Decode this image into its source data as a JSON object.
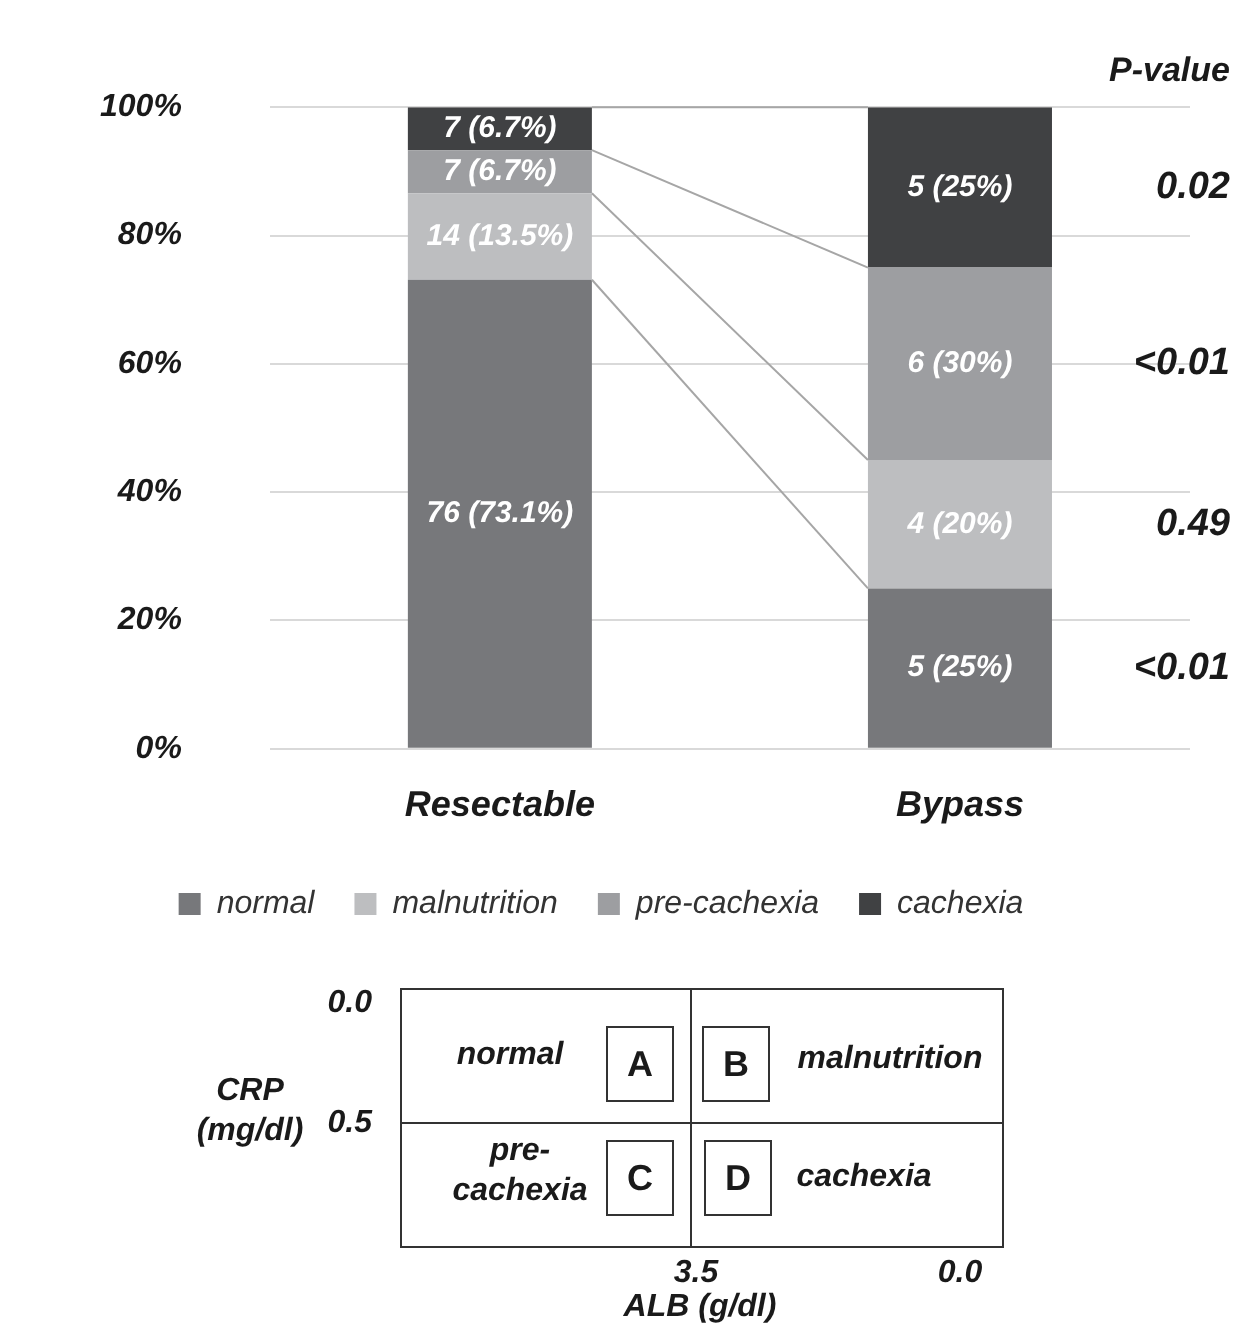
{
  "chart_data": {
    "type": "bar",
    "stacked": true,
    "categories": [
      "Resectable",
      "Bypass"
    ],
    "series": [
      {
        "name": "normal",
        "color": "#77787b",
        "values": [
          73.1,
          25
        ],
        "value_labels": [
          "76 (73.1%)",
          "5 (25%)"
        ]
      },
      {
        "name": "malnutrition",
        "color": "#bdbec0",
        "values": [
          13.5,
          20
        ],
        "value_labels": [
          "14 (13.5%)",
          "4 (20%)"
        ]
      },
      {
        "name": "pre-cachexia",
        "color": "#9d9ea1",
        "values": [
          6.7,
          30
        ],
        "value_labels": [
          "7 (6.7%)",
          "6 (30%)"
        ]
      },
      {
        "name": "cachexia",
        "color": "#404143",
        "values": [
          6.7,
          25
        ],
        "value_labels": [
          "7 (6.7%)",
          "5 (25%)"
        ]
      }
    ],
    "ylim": [
      0,
      100
    ],
    "yticks": [
      {
        "value": 0,
        "label": "0%"
      },
      {
        "value": 20,
        "label": "20%"
      },
      {
        "value": 40,
        "label": "40%"
      },
      {
        "value": 60,
        "label": "60%"
      },
      {
        "value": 80,
        "label": "80%"
      },
      {
        "value": 100,
        "label": "100%"
      }
    ],
    "grid": "y",
    "legend": "bottom",
    "annotations": [
      "P-value",
      "<0.01",
      "0.49",
      "<0.01",
      "0.02",
      "0.0",
      "0.5",
      "CRP (mg/dl)",
      "normal",
      "A",
      "B",
      "malnutrition",
      "pre-cachexia",
      "C",
      "D",
      "cachexia",
      "3.5",
      "0.0",
      "ALB (g/dl)"
    ]
  }
}
